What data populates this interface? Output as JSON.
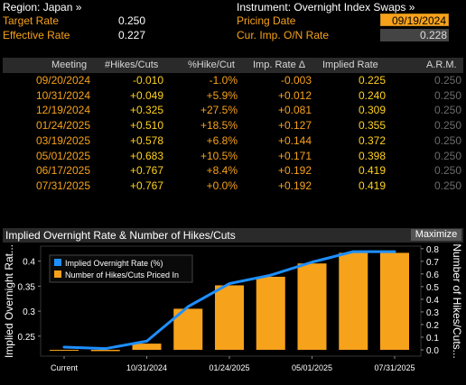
{
  "header": {
    "region_link": "Region: Japan »",
    "instrument_link": "Instrument: Overnight Index Swaps »",
    "target_rate_label": "Target Rate",
    "target_rate_value": "0.250",
    "effective_rate_label": "Effective Rate",
    "effective_rate_value": "0.227",
    "pricing_date_label": "Pricing Date",
    "pricing_date_value": "09/19/2024",
    "cur_imp_label": "Cur. Imp. O/N Rate",
    "cur_imp_value": "0.228"
  },
  "table": {
    "columns": [
      "Meeting",
      "#Hikes/Cuts",
      "%Hike/Cut",
      "Imp. Rate Δ",
      "Implied Rate",
      "A.R.M."
    ],
    "rows": [
      {
        "meeting": "09/20/2024",
        "hikes": "-0.010",
        "pct": "-1.0%",
        "delta": "-0.003",
        "implied": "0.225",
        "arm": "0.250"
      },
      {
        "meeting": "10/31/2024",
        "hikes": "+0.049",
        "pct": "+5.9%",
        "delta": "+0.012",
        "implied": "0.240",
        "arm": "0.250"
      },
      {
        "meeting": "12/19/2024",
        "hikes": "+0.325",
        "pct": "+27.5%",
        "delta": "+0.081",
        "implied": "0.309",
        "arm": "0.250"
      },
      {
        "meeting": "01/24/2025",
        "hikes": "+0.510",
        "pct": "+18.5%",
        "delta": "+0.127",
        "implied": "0.355",
        "arm": "0.250"
      },
      {
        "meeting": "03/19/2025",
        "hikes": "+0.578",
        "pct": "+6.8%",
        "delta": "+0.144",
        "implied": "0.372",
        "arm": "0.250"
      },
      {
        "meeting": "05/01/2025",
        "hikes": "+0.683",
        "pct": "+10.5%",
        "delta": "+0.171",
        "implied": "0.398",
        "arm": "0.250"
      },
      {
        "meeting": "06/17/2025",
        "hikes": "+0.767",
        "pct": "+8.4%",
        "delta": "+0.192",
        "implied": "0.419",
        "arm": "0.250"
      },
      {
        "meeting": "07/31/2025",
        "hikes": "+0.767",
        "pct": "+0.0%",
        "delta": "+0.192",
        "implied": "0.419",
        "arm": "0.250"
      }
    ]
  },
  "chart_panel": {
    "title": "Implied Overnight Rate & Number of Hikes/Cuts",
    "maximize_label": "Maximize"
  },
  "chart_data": {
    "type": "bar",
    "title": "Implied Overnight Rate & Number of Hikes/Cuts",
    "categories": [
      "Current",
      "09/20/2024",
      "10/31/2024",
      "12/19/2024",
      "01/24/2025",
      "03/19/2025",
      "05/01/2025",
      "06/17/2025",
      "07/31/2025"
    ],
    "x_tick_labels": [
      "Current",
      "10/31/2024",
      "01/24/2025",
      "05/01/2025",
      "07/31/2025"
    ],
    "series": [
      {
        "name": "Implied Overnight Rate (%)",
        "type": "line",
        "axis": "left",
        "color": "#1e8fff",
        "values": [
          0.228,
          0.225,
          0.24,
          0.309,
          0.355,
          0.372,
          0.398,
          0.419,
          0.419
        ]
      },
      {
        "name": "Number of Hikes/Cuts Priced In",
        "type": "bar",
        "axis": "right",
        "color": "#f7a21b",
        "values": [
          0.0,
          -0.01,
          0.049,
          0.325,
          0.51,
          0.578,
          0.683,
          0.767,
          0.767
        ]
      }
    ],
    "ylabel_left": "Implied Overnight Rat...",
    "ylabel_right": "Number of Hikes/Cuts...",
    "ylim_left": [
      0.21,
      0.43
    ],
    "yticks_left": [
      "0.4",
      "0.35",
      "0.3",
      "0.25"
    ],
    "ylim_right": [
      -0.05,
      0.82
    ],
    "yticks_right": [
      "0.8",
      "0.7",
      "0.6",
      "0.5",
      "0.4",
      "0.3",
      "0.2",
      "0.1",
      "0.0"
    ],
    "legend": "top-left",
    "colors": {
      "line": "#1e8fff",
      "bar": "#f7a21b"
    }
  }
}
